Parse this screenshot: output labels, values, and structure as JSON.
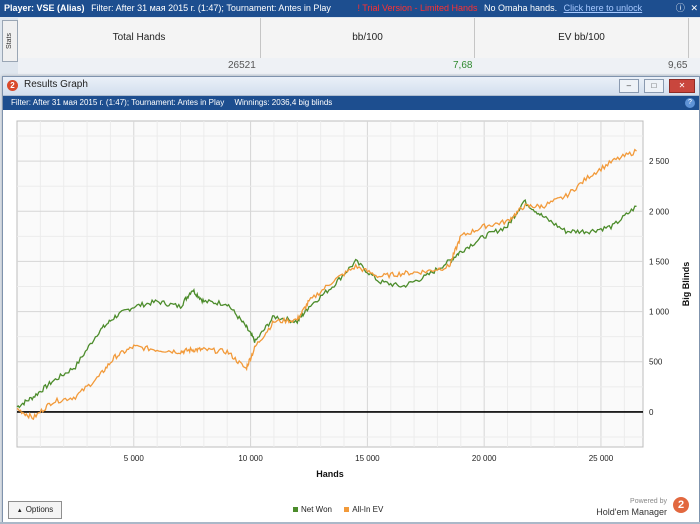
{
  "topbar": {
    "player": "Player: VSE (Alias)",
    "filter": "Filter: After 31 мая 2015 г. (1:47); Tournament: Antes in Play",
    "trial": "! Trial Version - Limited Hands",
    "omaha": "No Omaha hands.",
    "unlock": "Click here to unlock"
  },
  "stats_tab_label": "Stats",
  "stats": {
    "columns": [
      "Total Hands",
      "bb/100",
      "EV bb/100"
    ],
    "values": [
      "26521",
      "7,68",
      "9,65"
    ],
    "bb_color": "#2f8a2f"
  },
  "window": {
    "title": "Results Graph",
    "filter": "Filter: After 31 мая 2015 г. (1:47); Tournament: Antes in Play",
    "winnings": "Winnings: 2036,4 big blinds"
  },
  "chart_data": {
    "type": "line",
    "xlabel": "Hands",
    "ylabel": "Big Blinds",
    "xlim": [
      0,
      26800
    ],
    "ylim": [
      -350,
      2900
    ],
    "xticks": [
      5000,
      10000,
      15000,
      20000,
      25000
    ],
    "xtick_labels": [
      "5 000",
      "10 000",
      "15 000",
      "20 000",
      "25 000"
    ],
    "yticks": [
      0,
      500,
      1000,
      1500,
      2000,
      2500
    ],
    "ytick_labels": [
      "0",
      "500",
      "1 000",
      "1 500",
      "2 000",
      "2 500"
    ],
    "grid": true,
    "x": [
      0,
      700,
      1500,
      2500,
      3500,
      4200,
      5000,
      6000,
      7000,
      7500,
      8000,
      9000,
      9800,
      10200,
      11000,
      12000,
      12500,
      13500,
      14500,
      15500,
      16500,
      17500,
      18500,
      19000,
      20000,
      21000,
      21700,
      22500,
      23500,
      24500,
      25500,
      26521
    ],
    "series": [
      {
        "name": "Net Won",
        "color": "#4c8c2b",
        "values": [
          50,
          150,
          300,
          450,
          800,
          950,
          1050,
          1100,
          1050,
          1220,
          1100,
          1080,
          850,
          700,
          950,
          900,
          1050,
          1250,
          1500,
          1300,
          1250,
          1350,
          1500,
          1600,
          1750,
          1850,
          2100,
          1950,
          1800,
          1800,
          1850,
          2050
        ]
      },
      {
        "name": "All-In EV",
        "color": "#f29a3a",
        "values": [
          30,
          -60,
          100,
          150,
          350,
          550,
          650,
          620,
          600,
          620,
          620,
          600,
          430,
          650,
          900,
          920,
          1100,
          1300,
          1450,
          1350,
          1380,
          1400,
          1450,
          1750,
          1850,
          1900,
          2050,
          2050,
          2150,
          2350,
          2500,
          2600
        ]
      }
    ]
  },
  "options_label": "Options",
  "branding": {
    "powered": "Powered by",
    "name": "Hold'em Manager",
    "logo": "2"
  }
}
